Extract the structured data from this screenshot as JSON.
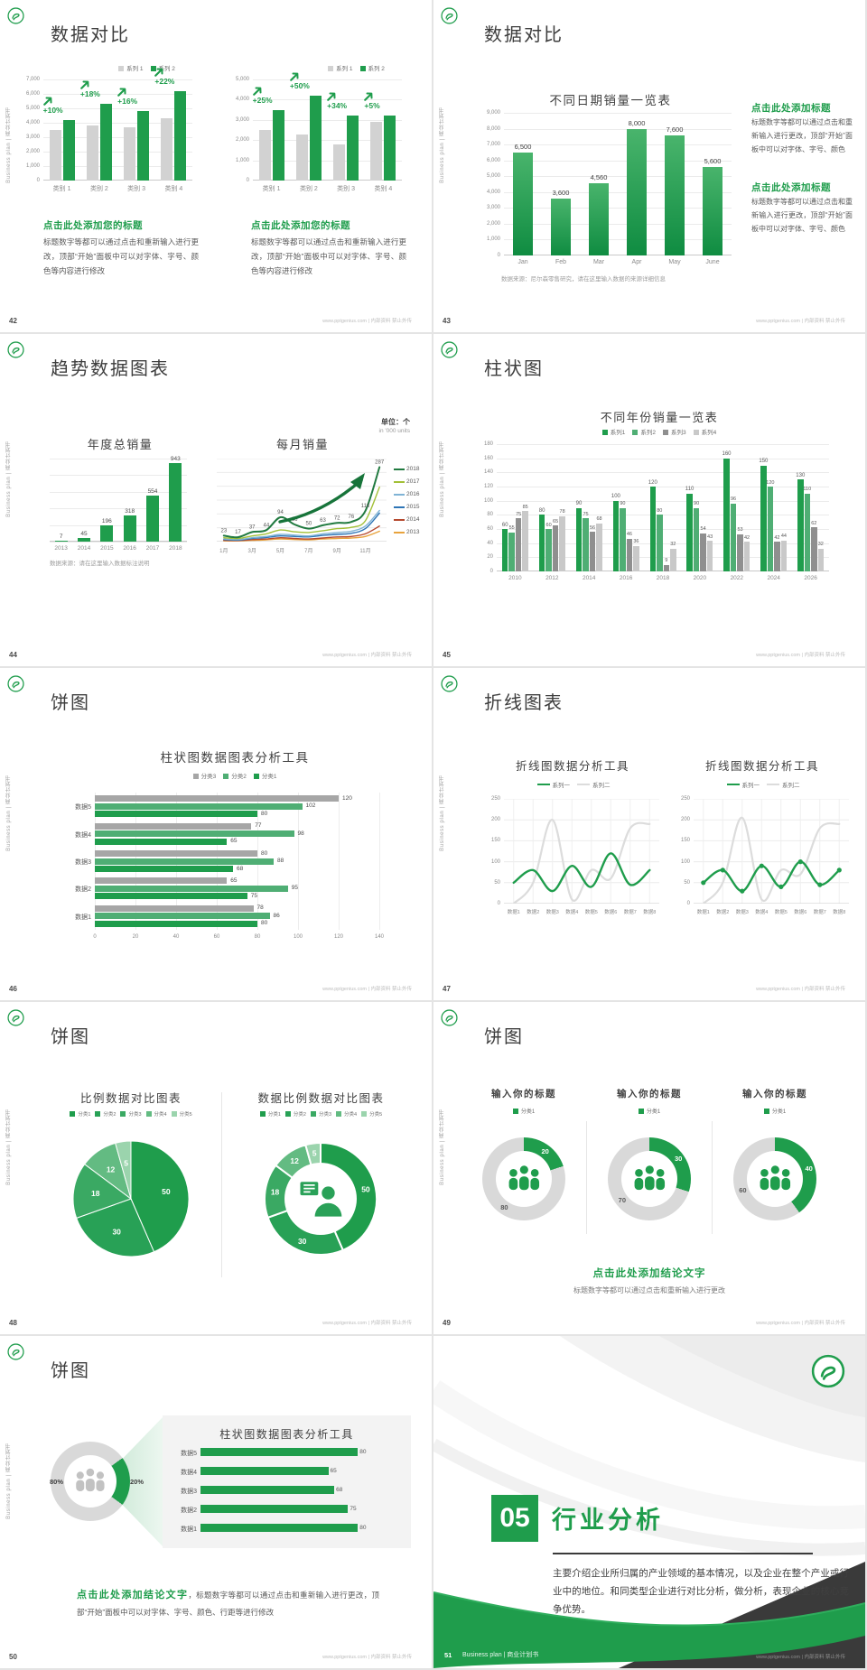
{
  "footer": {
    "site": "www.pptgenius.com | 内部资料 禁止外传"
  },
  "sidebar_text": "Business plan | 商业计划书",
  "colors": {
    "green": "#1f9d4c",
    "green_mid": "#4fae74",
    "green_dark_line": "#17743a",
    "gray_bar": "#d2d2d2",
    "gray_dark": "#8f8f8f",
    "gray_light": "#c9c9c9",
    "line_2017": "#a2c037",
    "line_2016": "#7fb3d5",
    "line_2015": "#2e75b6",
    "line_2014": "#b5492f",
    "line_2013": "#e8a33d",
    "gray_line": "#dcdcdc",
    "donut_gray": "#d9d9d9",
    "dark_corner": "#3a3a3a"
  },
  "slides": {
    "s42": {
      "page": "42",
      "title": "数据对比",
      "block_title": "点击此处添加您的标题",
      "block_text": "标题数字等都可以通过点击和重新输入进行更改，顶部“开始”面板中可以对字体、字号、颜色等内容进行修改"
    },
    "s43": {
      "page": "43",
      "title": "数据对比",
      "block_title": "点击此处添加标题",
      "block_text": "标题数字等都可以通过点击和重新输入进行更改，顶部“开始”面板中可以对字体、字号、颜色",
      "note": "数据来源：尼尔森零售研究，请在这里输入数据的来源详细信息"
    },
    "s44": {
      "page": "44",
      "title": "趋势数据图表",
      "unit1": "单位：个",
      "unit2": "in '000 units",
      "note": "数据来源：请在这里输入数据标注说明"
    },
    "s45": {
      "page": "45",
      "title": "柱状图"
    },
    "s46": {
      "page": "46",
      "title": "饼图"
    },
    "s47": {
      "page": "47",
      "title": "折线图表"
    },
    "s48": {
      "page": "48",
      "title": "饼图"
    },
    "s49": {
      "page": "49",
      "title": "饼图",
      "col_title": "输入你的标题",
      "legend": "分类1",
      "conclusion": "点击此处添加结论文字",
      "sub": "标题数字等都可以通过点击和重新输入进行更改"
    },
    "s50": {
      "page": "50",
      "title": "饼图",
      "conclusion_bold": "点击此处添加结论文字",
      "conclusion_rest": "，标题数字等都可以通过点击和重新输入进行更改，顶部“开始”面板中可以对字体、字号、颜色、行距等进行修改",
      "pct_left": "80%",
      "pct_right": "20%"
    },
    "s51": {
      "page": "51",
      "number": "05",
      "title": "行业分析",
      "body": "主要介绍企业所归属的产业领域的基本情况，以及企业在整个产业或行业中的地位。和同类型企业进行对比分析，做分析，表现企业的核心竞争优势。",
      "footer_left": "Business plan | 商业计划书"
    }
  },
  "chart_data": [
    {
      "id": "c42a",
      "type": "bar",
      "legend": [
        "系列 1",
        "系列 2"
      ],
      "categories": [
        "类别 1",
        "类别 2",
        "类别 3",
        "类别 4"
      ],
      "series": [
        {
          "name": "系列 1",
          "values": [
            3500,
            3800,
            3700,
            4300
          ]
        },
        {
          "name": "系列 2",
          "values": [
            4200,
            5300,
            4800,
            6200
          ]
        }
      ],
      "annotations": [
        "+10%",
        "+18%",
        "+16%",
        "+22%"
      ],
      "ylim": [
        0,
        7000
      ],
      "yticks": [
        "7,000",
        "6,000",
        "5,000",
        "4,000",
        "3,000",
        "2,000",
        "1,000",
        "0"
      ]
    },
    {
      "id": "c42b",
      "type": "bar",
      "legend": [
        "系列 1",
        "系列 2"
      ],
      "categories": [
        "类别 1",
        "类别 2",
        "类别 3",
        "类别 4"
      ],
      "series": [
        {
          "name": "系列 1",
          "values": [
            2500,
            2300,
            1800,
            2900
          ]
        },
        {
          "name": "系列 2",
          "values": [
            3500,
            4200,
            3200,
            3200
          ]
        }
      ],
      "annotations": [
        "+25%",
        "+50%",
        "+34%",
        "+5%"
      ],
      "ylim": [
        0,
        5000
      ],
      "yticks": [
        "5,000",
        "4,000",
        "3,000",
        "2,000",
        "1,000",
        "0"
      ]
    },
    {
      "id": "c43",
      "type": "bar",
      "title": "不同日期销量一览表",
      "categories": [
        "Jan",
        "Feb",
        "Mar",
        "Apr",
        "May",
        "June"
      ],
      "values": [
        6500,
        3600,
        4560,
        8000,
        7600,
        5600
      ],
      "labels": [
        "6,500",
        "3,600",
        "4,560",
        "8,000",
        "7,600",
        "5,600"
      ],
      "ylim": [
        0,
        9000
      ],
      "yticks": [
        "9,000",
        "8,000",
        "7,000",
        "6,000",
        "5,000",
        "4,000",
        "3,000",
        "2,000",
        "1,000",
        "0"
      ]
    },
    {
      "id": "c44a",
      "type": "bar",
      "title": "年度总销量",
      "categories": [
        "2013",
        "2014",
        "2015",
        "2016",
        "2017",
        "2018"
      ],
      "values": [
        7,
        45,
        196,
        318,
        554,
        943
      ],
      "ylim": [
        0,
        1000
      ]
    },
    {
      "id": "c44b",
      "type": "line",
      "title": "每月销量",
      "x": [
        "1月",
        "2月",
        "3月",
        "4月",
        "5月",
        "6月",
        "7月",
        "8月",
        "9月",
        "10月",
        "11月",
        "12月"
      ],
      "xticks_shown": [
        "1月",
        "3月",
        "5月",
        "7月",
        "9月",
        "11月"
      ],
      "ylim": [
        0,
        320
      ],
      "series": [
        {
          "name": "2018",
          "color": "#217a40",
          "values": [
            23,
            17,
            37,
            44,
            94,
            66,
            50,
            63,
            72,
            76,
            118,
            287
          ],
          "labeled": true
        },
        {
          "name": "2017",
          "color": "#a2c037",
          "values": [
            15,
            12,
            22,
            30,
            45,
            38,
            35,
            42,
            50,
            55,
            80,
            210
          ]
        },
        {
          "name": "2016",
          "color": "#7fb3d5",
          "values": [
            10,
            8,
            15,
            20,
            28,
            25,
            22,
            30,
            35,
            40,
            60,
            120
          ]
        },
        {
          "name": "2015",
          "color": "#2e75b6",
          "values": [
            8,
            6,
            12,
            16,
            22,
            20,
            18,
            24,
            28,
            32,
            50,
            110
          ]
        },
        {
          "name": "2014",
          "color": "#b5492f",
          "values": [
            5,
            4,
            8,
            10,
            15,
            12,
            10,
            14,
            18,
            20,
            30,
            60
          ]
        },
        {
          "name": "2013",
          "color": "#e8a33d",
          "values": [
            3,
            3,
            5,
            7,
            10,
            8,
            7,
            10,
            12,
            14,
            20,
            40
          ]
        }
      ]
    },
    {
      "id": "c45",
      "type": "bar",
      "title": "不同年份销量一览表",
      "legend": [
        "系列1",
        "系列2",
        "系列3",
        "系列4"
      ],
      "categories": [
        "2010",
        "2012",
        "2014",
        "2016",
        "2018",
        "2020",
        "2022",
        "2024",
        "2026"
      ],
      "ylim": [
        0,
        180
      ],
      "yticks": [
        "180",
        "160",
        "140",
        "120",
        "100",
        "80",
        "60",
        "40",
        "20",
        "0"
      ],
      "series": [
        {
          "name": "系列1",
          "color": "#1f9d4c",
          "values": [
            60,
            80,
            90,
            100,
            120,
            110,
            160,
            150,
            130
          ]
        },
        {
          "name": "系列2",
          "color": "#4fae74",
          "values": [
            55,
            60,
            75,
            90,
            80,
            90,
            96,
            120,
            110
          ]
        },
        {
          "name": "系列3",
          "color": "#8f8f8f",
          "values": [
            75,
            65,
            56,
            46,
            9,
            54,
            53,
            42,
            62
          ]
        },
        {
          "name": "系列4",
          "color": "#c9c9c9",
          "values": [
            85,
            78,
            68,
            36,
            32,
            43,
            42,
            44,
            32
          ]
        }
      ]
    },
    {
      "id": "c46",
      "type": "hbar",
      "title": "柱状图数据图表分析工具",
      "legend": [
        "分类3",
        "分类2",
        "分类1"
      ],
      "categories": [
        "数据5",
        "数据4",
        "数据3",
        "数据2",
        "数据1"
      ],
      "xlim": [
        0,
        140
      ],
      "xticks": [
        "0",
        "20",
        "40",
        "60",
        "80",
        "100",
        "120",
        "140"
      ],
      "series": [
        {
          "name": "分类3",
          "color": "#a6a6a6",
          "values": [
            120,
            77,
            80,
            65,
            78
          ]
        },
        {
          "name": "分类2",
          "color": "#4fae74",
          "values": [
            102,
            98,
            88,
            95,
            86
          ]
        },
        {
          "name": "分类1",
          "color": "#1f9d4c",
          "values": [
            80,
            65,
            68,
            75,
            80
          ]
        }
      ]
    },
    {
      "id": "c47a",
      "type": "line",
      "title": "折线图数据分析工具",
      "legend": [
        "系列一",
        "系列二"
      ],
      "markers": false,
      "x": [
        "数据1",
        "数据2",
        "数据3",
        "数据4",
        "数据5",
        "数据6",
        "数据7",
        "数据8"
      ],
      "ylim": [
        0,
        250
      ],
      "yticks": [
        "250",
        "200",
        "150",
        "100",
        "50",
        "0"
      ],
      "series": [
        {
          "name": "系列一",
          "color": "#1f9d4c",
          "values": [
            50,
            80,
            30,
            90,
            40,
            120,
            45,
            80
          ]
        },
        {
          "name": "系列二",
          "color": "#dcdcdc",
          "values": [
            0,
            50,
            200,
            10,
            80,
            60,
            180,
            190
          ]
        }
      ]
    },
    {
      "id": "c47b",
      "type": "line",
      "title": "折线图数据分析工具",
      "legend": [
        "系列一",
        "系列二"
      ],
      "markers": true,
      "x": [
        "数据1",
        "数据2",
        "数据3",
        "数据4",
        "数据5",
        "数据6",
        "数据7",
        "数据8"
      ],
      "ylim": [
        0,
        250
      ],
      "yticks": [
        "250",
        "200",
        "150",
        "100",
        "50",
        "0"
      ],
      "series": [
        {
          "name": "系列一",
          "color": "#1f9d4c",
          "values": [
            50,
            80,
            30,
            90,
            40,
            100,
            45,
            80
          ]
        },
        {
          "name": "系列二",
          "color": "#dcdcdc",
          "values": [
            0,
            50,
            205,
            10,
            80,
            70,
            180,
            190
          ]
        }
      ]
    },
    {
      "id": "c48a",
      "type": "pie",
      "title": "比例数据对比图表",
      "legend": [
        "分类1",
        "分类2",
        "分类3",
        "分类4",
        "分类5"
      ],
      "values": [
        50,
        30,
        18,
        12,
        5
      ],
      "colors": [
        "#1f9d4c",
        "#28a156",
        "#3aa963",
        "#63bb82",
        "#9bd4ad"
      ]
    },
    {
      "id": "c48b",
      "type": "donut",
      "title": "数据比例数据对比图表",
      "legend": [
        "分类1",
        "分类2",
        "分类3",
        "分类4",
        "分类5"
      ],
      "values": [
        50,
        30,
        18,
        12,
        5
      ],
      "colors": [
        "#1f9d4c",
        "#28a156",
        "#3aa963",
        "#63bb82",
        "#9bd4ad"
      ],
      "center_icon": "presenter-icon"
    },
    {
      "id": "c49",
      "type": "donut",
      "titles": [
        "输入你的标题",
        "输入你的标题",
        "输入你的标题"
      ],
      "legend": "分类1",
      "donuts": [
        {
          "green": 20,
          "gray": 80
        },
        {
          "green": 30,
          "gray": 70
        },
        {
          "green": 40,
          "gray": 60
        }
      ],
      "center_icon": "people-icon"
    },
    {
      "id": "c50",
      "type": "donut+hbar",
      "donut": {
        "green": 20,
        "gray": 80,
        "labels": [
          "80%",
          "20%"
        ]
      },
      "panel_title": "柱状图数据图表分析工具",
      "categories": [
        "数据5",
        "数据4",
        "数据3",
        "数据2",
        "数据1"
      ],
      "values": [
        80,
        65,
        68,
        75,
        80
      ],
      "xlim": [
        0,
        90
      ]
    }
  ]
}
